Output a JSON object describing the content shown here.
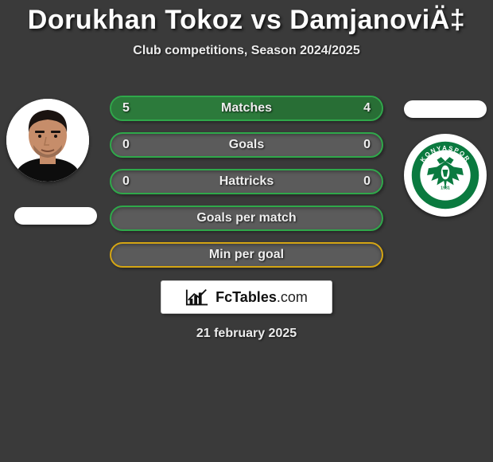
{
  "header": {
    "title": "Dorukhan Tokoz vs DamjanoviÄ‡",
    "subtitle": "Club competitions, Season 2024/2025"
  },
  "left_player": {
    "avatar_bg": "#ffffff",
    "skin_color": "#c68d6a",
    "hair_color": "#1a1310",
    "shirt_color": "#0d0d0d"
  },
  "right_club": {
    "name": "KONYASPOR",
    "ring_color": "#0a7a3f",
    "inner_bg": "#ffffff",
    "eagle_color": "#0a7a3f",
    "year": "1981"
  },
  "bars": {
    "border_green": "#2fa84a",
    "border_yellow": "#d4a514",
    "track_color": "#5b5b5b",
    "fill_green": "#2c7a3b",
    "rows": [
      {
        "label": "Matches",
        "left": "5",
        "right": "4",
        "left_pct": 55,
        "right_pct": 45,
        "style": "green",
        "show_values": true,
        "show_fill": true
      },
      {
        "label": "Goals",
        "left": "0",
        "right": "0",
        "left_pct": 0,
        "right_pct": 0,
        "style": "green",
        "show_values": true,
        "show_fill": false
      },
      {
        "label": "Hattricks",
        "left": "0",
        "right": "0",
        "left_pct": 0,
        "right_pct": 0,
        "style": "green",
        "show_values": true,
        "show_fill": false
      },
      {
        "label": "Goals per match",
        "left": "",
        "right": "",
        "left_pct": 0,
        "right_pct": 0,
        "style": "green",
        "show_values": false,
        "show_fill": false
      },
      {
        "label": "Min per goal",
        "left": "",
        "right": "",
        "left_pct": 0,
        "right_pct": 0,
        "style": "yellow",
        "show_values": false,
        "show_fill": false
      }
    ]
  },
  "brand": {
    "text_bold": "FcTables",
    "text_thin": ".com",
    "icon_color": "#111111"
  },
  "date": "21 february 2025"
}
